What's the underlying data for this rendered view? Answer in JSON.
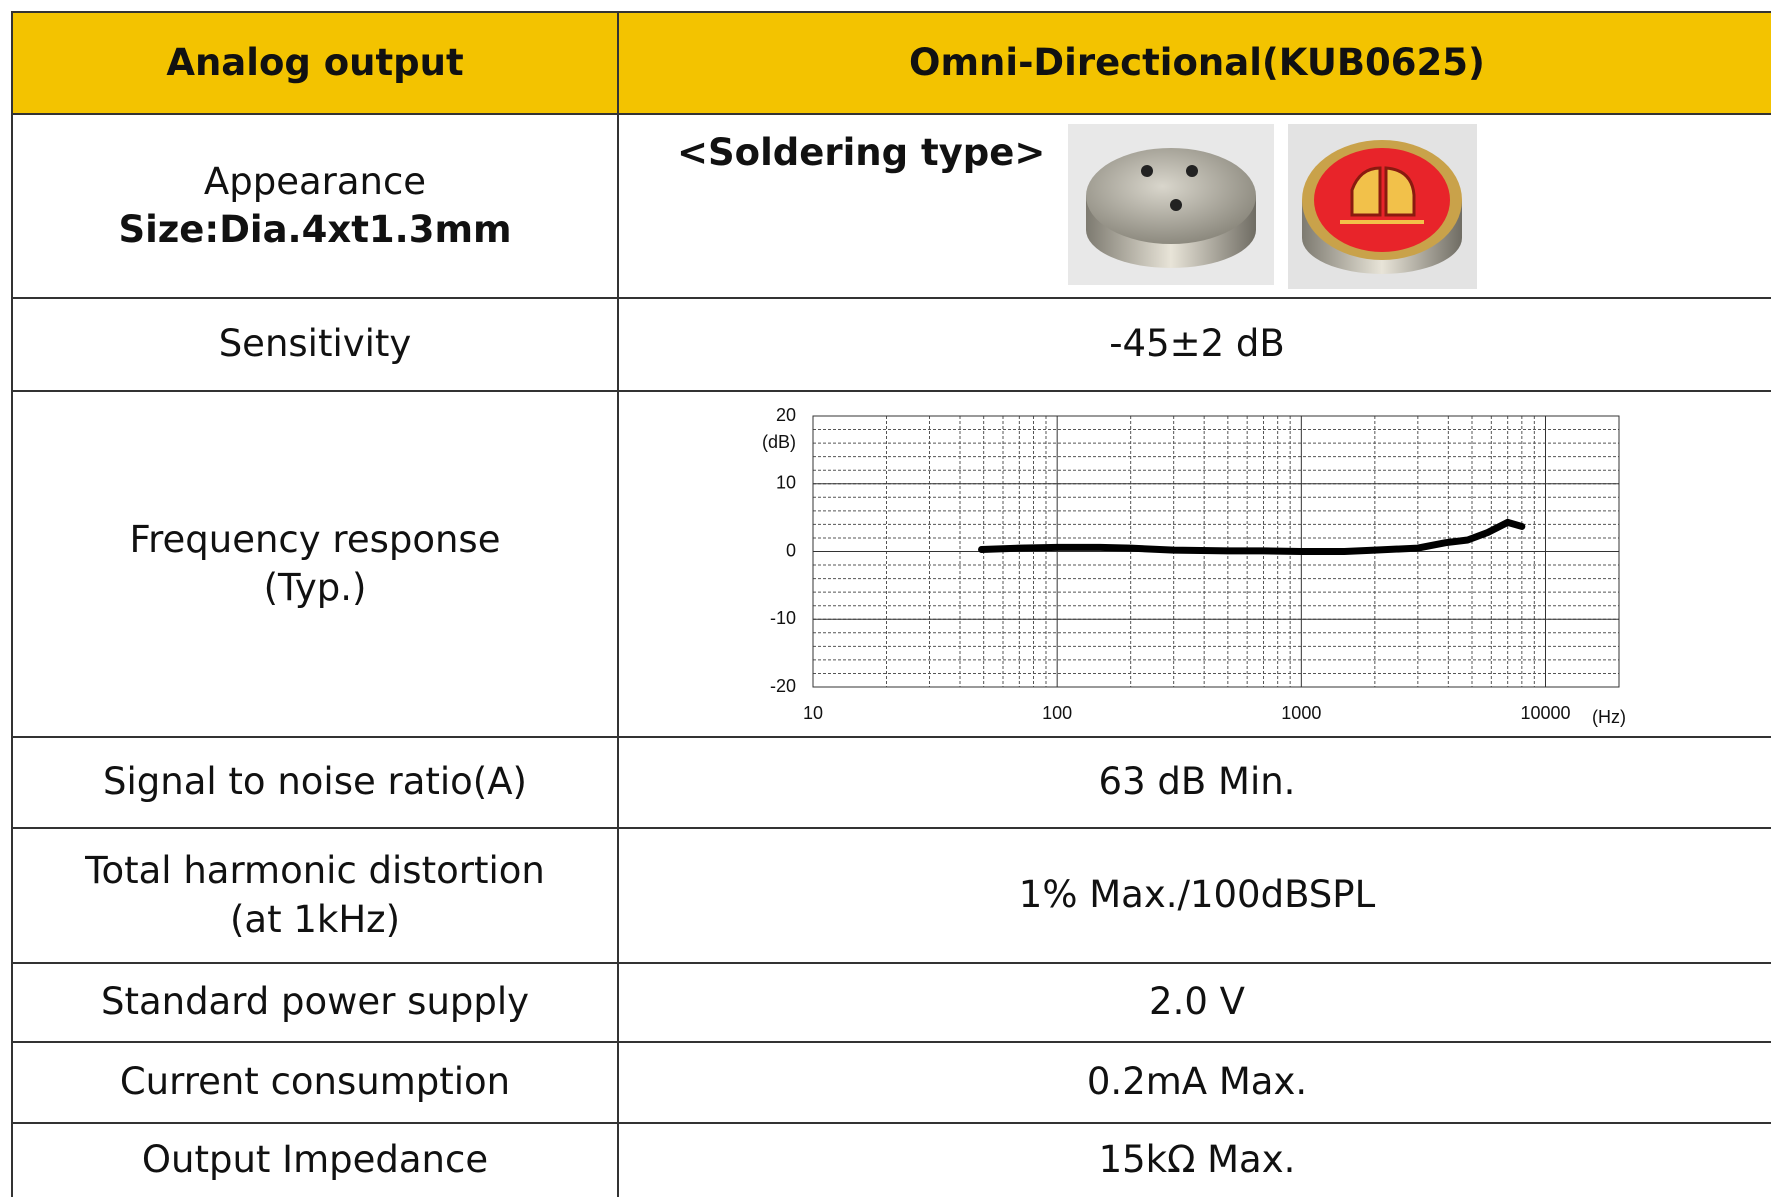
{
  "table": {
    "header": [
      "Analog output",
      "Omni-Directional(KUB0625)"
    ],
    "rows": [
      {
        "label": [
          "Appearance"
        ],
        "label_bold": "Size:Dia.4xt1.3mm",
        "caption": "<Soldering type>"
      },
      {
        "label": [
          "Sensitivity"
        ],
        "value": "-45±2 dB"
      },
      {
        "label": [
          "Frequency response",
          "(Typ.)"
        ]
      },
      {
        "label": [
          "Signal to noise ratio(A)"
        ],
        "value": "63 dB Min."
      },
      {
        "label": [
          "Total harmonic distortion",
          "(at 1kHz)"
        ],
        "value": "1% Max./100dBSPL"
      },
      {
        "label": [
          "Standard power supply"
        ],
        "value": "2.0 V"
      },
      {
        "label": [
          "Current consumption"
        ],
        "value": "0.2mA Max."
      },
      {
        "label": [
          "Output Impedance"
        ],
        "value": "15kΩ Max."
      }
    ]
  },
  "chart_data": {
    "type": "line",
    "log_x": true,
    "grid": true,
    "color": "#000000",
    "y_unit": "(dB)",
    "x_unit": "(Hz)",
    "xlim": [
      10,
      20000
    ],
    "ylim": [
      -20,
      20
    ],
    "xticks": [
      10,
      100,
      1000,
      10000
    ],
    "yticks": [
      -20,
      -10,
      0,
      10,
      20
    ],
    "x": [
      49,
      70,
      100,
      150,
      200,
      300,
      500,
      700,
      1000,
      1500,
      2000,
      3000,
      3900,
      4800,
      5800,
      7000,
      8000
    ],
    "values": [
      0.3,
      0.5,
      0.6,
      0.6,
      0.5,
      0.2,
      0.1,
      0.1,
      0.0,
      0.0,
      0.2,
      0.5,
      1.3,
      1.7,
      2.8,
      4.3,
      3.7
    ]
  }
}
